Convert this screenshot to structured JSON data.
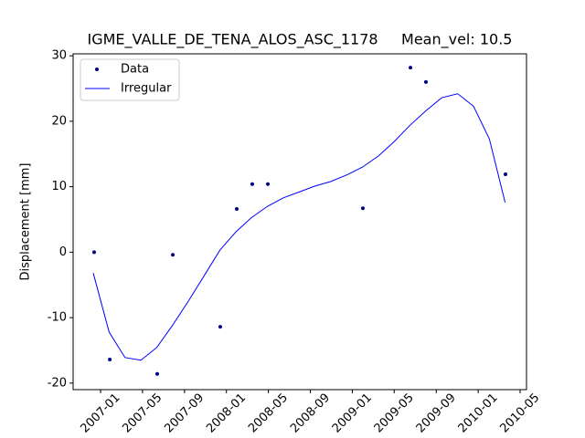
{
  "chart_data": {
    "type": "scatter_line",
    "title": "IGME_VALLE_DE_TENA_ALOS_ASC_1178     Mean_vel: 10.5",
    "ylabel": "Displacement [mm]",
    "xlim": [
      2006.782,
      2010.384
    ],
    "ylim": [
      -21.0,
      30.3
    ],
    "xticks": [
      {
        "value": 2007.0,
        "label": "2007-01"
      },
      {
        "value": 2007.333,
        "label": "2007-05"
      },
      {
        "value": 2007.667,
        "label": "2007-09"
      },
      {
        "value": 2008.0,
        "label": "2008-01"
      },
      {
        "value": 2008.333,
        "label": "2008-05"
      },
      {
        "value": 2008.667,
        "label": "2008-09"
      },
      {
        "value": 2009.0,
        "label": "2009-01"
      },
      {
        "value": 2009.333,
        "label": "2009-05"
      },
      {
        "value": 2009.667,
        "label": "2009-09"
      },
      {
        "value": 2010.0,
        "label": "2010-01"
      },
      {
        "value": 2010.333,
        "label": "2010-05"
      }
    ],
    "yticks": [
      -20,
      -10,
      0,
      10,
      20,
      30
    ],
    "legend": "upper left",
    "series": [
      {
        "name": "Data",
        "kind": "points",
        "color": "#000080",
        "x": [
          2006.949,
          2007.073,
          2007.45,
          2007.574,
          2007.951,
          2008.082,
          2008.205,
          2008.329,
          2009.084,
          2009.462,
          2009.585,
          2010.217
        ],
        "values": [
          0.0,
          -16.4,
          -18.6,
          -0.4,
          -11.4,
          6.6,
          10.4,
          10.4,
          6.7,
          28.2,
          26.0,
          11.9
        ]
      },
      {
        "name": "Irregular",
        "kind": "line",
        "color": "#0000ff",
        "x": [
          2006.942,
          2007.068,
          2007.194,
          2007.32,
          2007.445,
          2007.571,
          2007.697,
          2007.823,
          2007.948,
          2008.075,
          2008.2,
          2008.326,
          2008.452,
          2008.578,
          2008.704,
          2008.83,
          2008.956,
          2009.081,
          2009.208,
          2009.333,
          2009.459,
          2009.585,
          2009.711,
          2009.837,
          2009.963,
          2010.089,
          2010.214
        ],
        "values": [
          -3.2,
          -12.2,
          -16.1,
          -16.5,
          -14.6,
          -11.2,
          -7.5,
          -3.6,
          0.3,
          3.1,
          5.3,
          7.0,
          8.3,
          9.2,
          10.1,
          10.8,
          11.8,
          13.0,
          14.7,
          16.9,
          19.4,
          21.6,
          23.6,
          24.2,
          22.3,
          17.3,
          7.6
        ]
      }
    ]
  }
}
